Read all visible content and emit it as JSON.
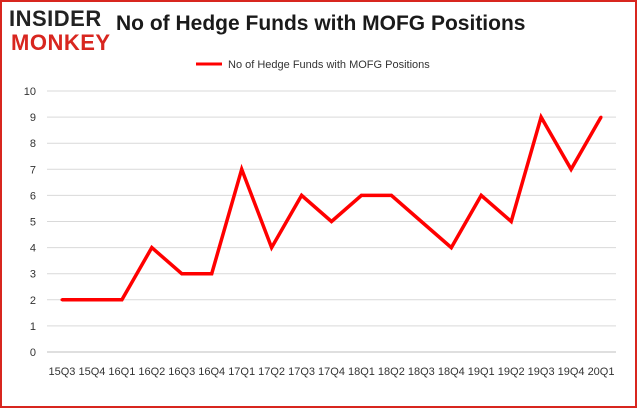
{
  "logo": {
    "line1": "INSIDER",
    "line2": "MONKEY"
  },
  "colors": {
    "series": "#ff0000",
    "frame": "#d8261f",
    "grid": "#d9d9d9",
    "logo_dark": "#222222",
    "logo_red": "#d8261f"
  },
  "chart_data": {
    "type": "line",
    "title": "No of Hedge Funds with MOFG Positions",
    "xlabel": "",
    "ylabel": "",
    "ylim": [
      0,
      10
    ],
    "yticks": [
      0,
      1,
      2,
      3,
      4,
      5,
      6,
      7,
      8,
      9,
      10
    ],
    "grid": true,
    "legend_position": "top-center",
    "categories": [
      "15Q3",
      "15Q4",
      "16Q1",
      "16Q2",
      "16Q3",
      "16Q4",
      "17Q1",
      "17Q2",
      "17Q3",
      "17Q4",
      "18Q1",
      "18Q2",
      "18Q3",
      "18Q4",
      "19Q1",
      "19Q2",
      "19Q3",
      "19Q4",
      "20Q1"
    ],
    "series": [
      {
        "name": "No of Hedge Funds with MOFG Positions",
        "values": [
          2,
          2,
          2,
          4,
          3,
          3,
          7,
          4,
          6,
          5,
          6,
          6,
          5,
          4,
          6,
          5,
          9,
          7,
          9
        ]
      }
    ]
  }
}
